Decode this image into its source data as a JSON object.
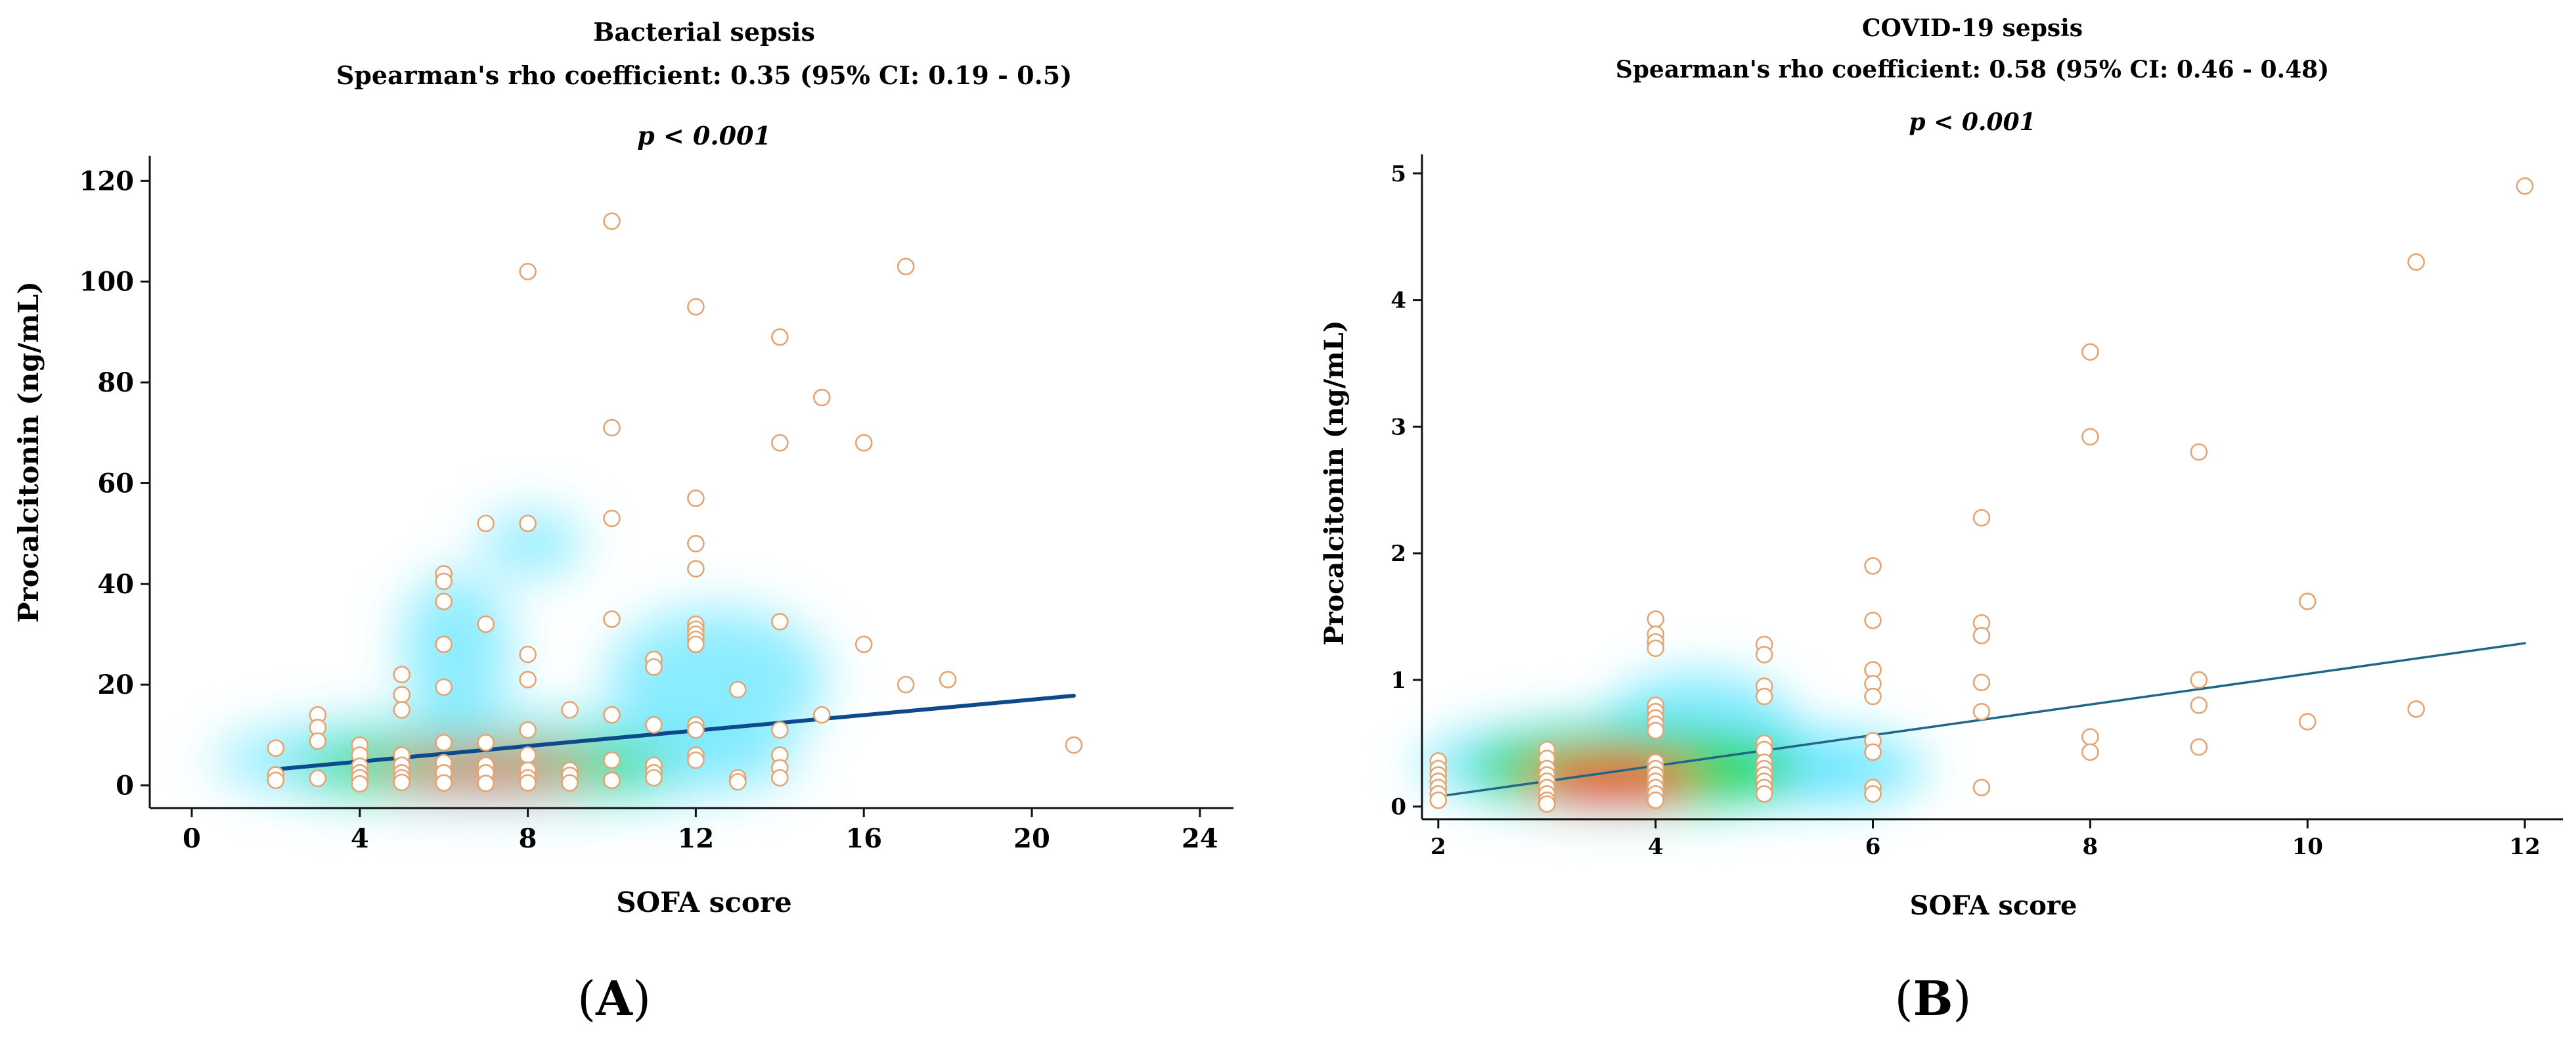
{
  "colors": {
    "point_stroke": "#e3a574",
    "point_fill": "#ffffff",
    "trend_a": "#0d4a8c",
    "trend_b": "#1f6687",
    "axis": "#111111",
    "density_low": "#66e6ff",
    "density_mid": "#22d428",
    "density_high": "#ff1a00"
  },
  "chart_data": [
    {
      "type": "scatter",
      "panel_label": "(A)",
      "panel_letter": "A",
      "title": "Bacterial sepsis",
      "subtitle": "Spearman's rho coefficient: 0.35 (95% CI: 0.19 - 0.5)",
      "pvalue": "p < 0.001",
      "xlabel": "SOFA score",
      "ylabel": "Procalcitonin (ng/mL)",
      "xlim": [
        -1,
        24.8
      ],
      "ylim": [
        -4.5,
        125
      ],
      "xticks": [
        0,
        4,
        8,
        12,
        16,
        20,
        24
      ],
      "xtick_labels": [
        "0",
        "4",
        "8",
        "12",
        "16",
        "20",
        "24"
      ],
      "yticks": [
        0,
        20,
        40,
        60,
        80,
        100,
        120
      ],
      "ytick_labels": [
        "0",
        "20",
        "40",
        "60",
        "80",
        "100",
        "120"
      ],
      "trend_line": {
        "x": [
          2,
          21
        ],
        "y": [
          3.2,
          17.8
        ]
      },
      "density_regions": [
        {
          "x": 7.5,
          "y": 5,
          "rx": 7,
          "ry": 9,
          "level": "low"
        },
        {
          "x": 12.5,
          "y": 21,
          "rx": 2.6,
          "ry": 14,
          "level": "low"
        },
        {
          "x": 6.3,
          "y": 27,
          "rx": 1.3,
          "ry": 15,
          "level": "low"
        },
        {
          "x": 8.1,
          "y": 48,
          "rx": 1.2,
          "ry": 6,
          "level": "low"
        },
        {
          "x": 7,
          "y": 4,
          "rx": 4.5,
          "ry": 5,
          "level": "mid"
        },
        {
          "x": 7,
          "y": 3,
          "rx": 2.5,
          "ry": 3,
          "level": "high"
        }
      ],
      "points": [
        [
          2,
          7.4
        ],
        [
          2,
          2.1
        ],
        [
          2,
          1
        ],
        [
          3,
          14
        ],
        [
          3,
          11.5
        ],
        [
          3,
          8.8
        ],
        [
          3,
          1.4
        ],
        [
          4,
          8
        ],
        [
          4,
          6
        ],
        [
          4,
          3.8
        ],
        [
          4,
          2.5
        ],
        [
          4,
          1.5
        ],
        [
          4,
          0.3
        ],
        [
          5,
          22
        ],
        [
          5,
          18
        ],
        [
          5,
          15
        ],
        [
          5,
          6
        ],
        [
          5,
          4
        ],
        [
          5,
          2.5
        ],
        [
          5,
          1.5
        ],
        [
          5,
          0.6
        ],
        [
          6,
          42
        ],
        [
          6,
          40.5
        ],
        [
          6,
          36.5
        ],
        [
          6,
          28
        ],
        [
          6,
          19.5
        ],
        [
          6,
          8.5
        ],
        [
          6,
          4.5
        ],
        [
          6,
          2.5
        ],
        [
          6,
          0.5
        ],
        [
          7,
          52
        ],
        [
          7,
          32
        ],
        [
          7,
          8.5
        ],
        [
          7,
          4
        ],
        [
          7,
          2.5
        ],
        [
          7,
          0.4
        ],
        [
          8,
          102
        ],
        [
          8,
          52
        ],
        [
          8,
          26
        ],
        [
          8,
          21
        ],
        [
          8,
          11
        ],
        [
          8,
          6
        ],
        [
          8,
          3
        ],
        [
          8,
          1.5
        ],
        [
          8,
          0.5
        ],
        [
          9,
          15
        ],
        [
          9,
          3
        ],
        [
          9,
          2
        ],
        [
          9,
          0.5
        ],
        [
          10,
          112
        ],
        [
          10,
          71
        ],
        [
          10,
          53
        ],
        [
          10,
          33
        ],
        [
          10,
          14
        ],
        [
          10,
          5
        ],
        [
          10,
          1
        ],
        [
          11,
          25
        ],
        [
          11,
          23.5
        ],
        [
          11,
          12
        ],
        [
          11,
          4
        ],
        [
          11,
          2.5
        ],
        [
          11,
          1.5
        ],
        [
          12,
          95
        ],
        [
          12,
          57
        ],
        [
          12,
          48
        ],
        [
          12,
          43
        ],
        [
          12,
          32
        ],
        [
          12,
          31
        ],
        [
          12,
          30
        ],
        [
          12,
          29
        ],
        [
          12,
          28
        ],
        [
          12,
          12
        ],
        [
          12,
          11
        ],
        [
          12,
          6
        ],
        [
          12,
          5
        ],
        [
          13,
          19
        ],
        [
          13,
          1.5
        ],
        [
          13,
          0.7
        ],
        [
          14,
          89
        ],
        [
          14,
          68
        ],
        [
          14,
          32.5
        ],
        [
          14,
          11
        ],
        [
          14,
          6
        ],
        [
          14,
          3.5
        ],
        [
          14,
          1.5
        ],
        [
          15,
          77
        ],
        [
          15,
          14
        ],
        [
          16,
          68
        ],
        [
          16,
          28
        ],
        [
          17,
          103
        ],
        [
          17,
          20
        ],
        [
          18,
          21
        ],
        [
          21,
          8
        ]
      ]
    },
    {
      "type": "scatter",
      "panel_label": "(B)",
      "panel_letter": "B",
      "title": "COVID-19 sepsis",
      "subtitle": "Spearman's rho coefficient: 0.58 (95% CI: 0.46 - 0.48)",
      "pvalue": "p < 0.001",
      "xlabel": "SOFA score",
      "ylabel": "Procalcitonin (ng/mL)",
      "xlim": [
        1.85,
        12.35
      ],
      "ylim": [
        -0.1,
        5.15
      ],
      "xticks": [
        2,
        4,
        6,
        8,
        10,
        12
      ],
      "xtick_labels": [
        "2",
        "4",
        "6",
        "8",
        "10",
        "12"
      ],
      "yticks": [
        0,
        1,
        2,
        3,
        4,
        5
      ],
      "ytick_labels": [
        "0",
        "1",
        "2",
        "3",
        "4",
        "5"
      ],
      "trend_line": {
        "x": [
          2,
          12
        ],
        "y": [
          0.08,
          1.29
        ]
      },
      "density_regions": [
        {
          "x": 3.9,
          "y": 0.33,
          "rx": 2.1,
          "ry": 0.4,
          "level": "low"
        },
        {
          "x": 4.4,
          "y": 0.62,
          "rx": 0.9,
          "ry": 0.45,
          "level": "low"
        },
        {
          "x": 5.6,
          "y": 0.3,
          "rx": 0.9,
          "ry": 0.3,
          "level": "low"
        },
        {
          "x": 3.8,
          "y": 0.3,
          "rx": 1.5,
          "ry": 0.3,
          "level": "mid"
        },
        {
          "x": 3.6,
          "y": 0.22,
          "rx": 0.8,
          "ry": 0.18,
          "level": "high"
        }
      ],
      "points": [
        [
          2,
          0.36
        ],
        [
          2,
          0.3
        ],
        [
          2,
          0.25
        ],
        [
          2,
          0.2
        ],
        [
          2,
          0.15
        ],
        [
          2,
          0.1
        ],
        [
          2,
          0.05
        ],
        [
          3,
          0.45
        ],
        [
          3,
          0.38
        ],
        [
          3,
          0.3
        ],
        [
          3,
          0.25
        ],
        [
          3,
          0.2
        ],
        [
          3,
          0.15
        ],
        [
          3,
          0.1
        ],
        [
          3,
          0.05
        ],
        [
          3,
          0.02
        ],
        [
          4,
          1.48
        ],
        [
          4,
          1.36
        ],
        [
          4,
          1.3
        ],
        [
          4,
          1.25
        ],
        [
          4,
          0.8
        ],
        [
          4,
          0.75
        ],
        [
          4,
          0.7
        ],
        [
          4,
          0.65
        ],
        [
          4,
          0.6
        ],
        [
          4,
          0.35
        ],
        [
          4,
          0.3
        ],
        [
          4,
          0.25
        ],
        [
          4,
          0.2
        ],
        [
          4,
          0.15
        ],
        [
          4,
          0.1
        ],
        [
          4,
          0.05
        ],
        [
          5,
          1.28
        ],
        [
          5,
          1.2
        ],
        [
          5,
          0.95
        ],
        [
          5,
          0.87
        ],
        [
          5,
          0.5
        ],
        [
          5,
          0.45
        ],
        [
          5,
          0.35
        ],
        [
          5,
          0.3
        ],
        [
          5,
          0.25
        ],
        [
          5,
          0.2
        ],
        [
          5,
          0.15
        ],
        [
          5,
          0.1
        ],
        [
          6,
          1.9
        ],
        [
          6,
          1.47
        ],
        [
          6,
          1.08
        ],
        [
          6,
          0.97
        ],
        [
          6,
          0.87
        ],
        [
          6,
          0.52
        ],
        [
          6,
          0.43
        ],
        [
          6,
          0.15
        ],
        [
          6,
          0.1
        ],
        [
          7,
          2.28
        ],
        [
          7,
          1.45
        ],
        [
          7,
          1.35
        ],
        [
          7,
          0.98
        ],
        [
          7,
          0.75
        ],
        [
          7,
          0.15
        ],
        [
          8,
          3.59
        ],
        [
          8,
          2.92
        ],
        [
          8,
          0.55
        ],
        [
          8,
          0.43
        ],
        [
          9,
          2.8
        ],
        [
          9,
          1
        ],
        [
          9,
          0.8
        ],
        [
          9,
          0.47
        ],
        [
          10,
          1.62
        ],
        [
          10,
          0.67
        ],
        [
          11,
          4.3
        ],
        [
          11,
          0.77
        ],
        [
          12,
          4.9
        ]
      ]
    }
  ]
}
